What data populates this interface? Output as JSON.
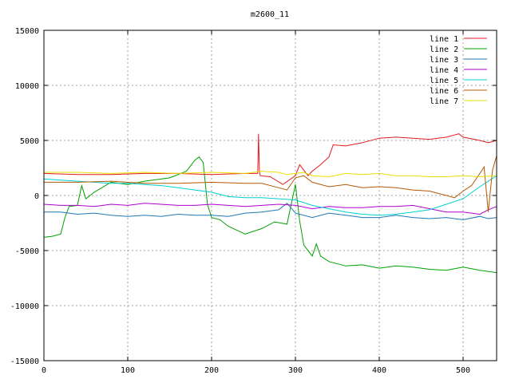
{
  "chart_data": {
    "type": "line",
    "title": "m2600_11",
    "xlabel": "",
    "ylabel": "",
    "xlim": [
      0,
      540
    ],
    "ylim": [
      -15000,
      15000
    ],
    "xticks": [
      0,
      100,
      200,
      300,
      400,
      500
    ],
    "yticks": [
      -15000,
      -10000,
      -5000,
      0,
      5000,
      10000,
      15000
    ],
    "grid": true,
    "legend_position": "top-right",
    "series": [
      {
        "name": "line 1",
        "color": "#e41a1c",
        "x": [
          0,
          40,
          80,
          120,
          160,
          200,
          240,
          255,
          256,
          257,
          258,
          270,
          285,
          300,
          305,
          315,
          320,
          330,
          340,
          345,
          360,
          380,
          400,
          420,
          440,
          460,
          480,
          495,
          500,
          520,
          530,
          540
        ],
        "y": [
          2000,
          1900,
          1900,
          2000,
          2000,
          1900,
          2000,
          2000,
          5600,
          2200,
          1800,
          1700,
          1000,
          1800,
          2800,
          1800,
          2200,
          2800,
          3500,
          4600,
          4500,
          4800,
          5200,
          5300,
          5200,
          5100,
          5300,
          5600,
          5300,
          5000,
          4800,
          5000
        ]
      },
      {
        "name": "line 2",
        "color": "#00a000",
        "x": [
          0,
          10,
          20,
          25,
          30,
          40,
          45,
          50,
          60,
          80,
          100,
          120,
          150,
          170,
          180,
          185,
          190,
          195,
          200,
          210,
          220,
          240,
          260,
          275,
          290,
          300,
          305,
          310,
          320,
          325,
          330,
          340,
          360,
          380,
          400,
          420,
          440,
          460,
          480,
          500,
          520,
          540
        ],
        "y": [
          -3800,
          -3700,
          -3500,
          -2000,
          -1000,
          -900,
          900,
          -300,
          300,
          1200,
          1000,
          1300,
          1600,
          2200,
          3200,
          3500,
          3000,
          -800,
          -2000,
          -2200,
          -2800,
          -3500,
          -3000,
          -2400,
          -2600,
          1000,
          -2300,
          -4500,
          -5500,
          -4400,
          -5500,
          -6000,
          -6400,
          -6300,
          -6600,
          -6400,
          -6500,
          -6700,
          -6800,
          -6500,
          -6800,
          -7000
        ]
      },
      {
        "name": "line 3",
        "color": "#1f77b4",
        "x": [
          0,
          20,
          40,
          60,
          80,
          100,
          120,
          140,
          160,
          180,
          200,
          220,
          240,
          260,
          280,
          290,
          300,
          320,
          340,
          360,
          380,
          400,
          420,
          440,
          460,
          480,
          500,
          520,
          530,
          540
        ],
        "y": [
          -1500,
          -1500,
          -1700,
          -1600,
          -1800,
          -1900,
          -1800,
          -1900,
          -1700,
          -1800,
          -1800,
          -1900,
          -1600,
          -1500,
          -1300,
          -700,
          -1600,
          -2000,
          -1600,
          -1800,
          -2000,
          -2000,
          -1800,
          -2000,
          -2100,
          -2000,
          -2200,
          -1900,
          -2100,
          -2000
        ]
      },
      {
        "name": "line 4",
        "color": "#b000d0",
        "x": [
          0,
          20,
          40,
          60,
          80,
          100,
          120,
          140,
          160,
          180,
          200,
          220,
          240,
          260,
          280,
          300,
          320,
          340,
          360,
          380,
          400,
          420,
          440,
          460,
          480,
          500,
          520,
          530,
          540
        ],
        "y": [
          -800,
          -900,
          -900,
          -1000,
          -800,
          -900,
          -700,
          -800,
          -900,
          -900,
          -800,
          -900,
          -1000,
          -900,
          -800,
          -900,
          -1200,
          -1000,
          -1100,
          -1100,
          -1000,
          -1000,
          -900,
          -1200,
          -1500,
          -1500,
          -1700,
          -1300,
          -1000
        ]
      },
      {
        "name": "line 5",
        "color": "#00d0d0",
        "x": [
          0,
          20,
          40,
          60,
          80,
          100,
          120,
          140,
          160,
          180,
          200,
          220,
          240,
          260,
          280,
          300,
          320,
          340,
          360,
          380,
          400,
          420,
          440,
          460,
          480,
          500,
          520,
          540
        ],
        "y": [
          1500,
          1400,
          1300,
          1200,
          1100,
          1100,
          1000,
          900,
          700,
          500,
          300,
          -100,
          -200,
          -200,
          -300,
          -400,
          -900,
          -1200,
          -1500,
          -1700,
          -1800,
          -1700,
          -1500,
          -1300,
          -800,
          -300,
          800,
          1800
        ]
      },
      {
        "name": "line 6",
        "color": "#b35806",
        "x": [
          0,
          40,
          80,
          120,
          160,
          200,
          240,
          260,
          280,
          290,
          300,
          310,
          320,
          340,
          360,
          380,
          400,
          420,
          440,
          460,
          480,
          490,
          500,
          510,
          520,
          525,
          530,
          535,
          540
        ],
        "y": [
          1200,
          1200,
          1300,
          1100,
          1100,
          1200,
          1100,
          1100,
          700,
          500,
          1600,
          1800,
          1200,
          800,
          1000,
          700,
          800,
          700,
          500,
          400,
          0,
          -200,
          400,
          900,
          2000,
          2600,
          -1500,
          2300,
          3600
        ]
      },
      {
        "name": "line 7",
        "color": "#e8e000",
        "x": [
          0,
          40,
          80,
          120,
          160,
          200,
          240,
          260,
          280,
          290,
          300,
          310,
          320,
          340,
          360,
          380,
          400,
          420,
          440,
          460,
          480,
          500,
          520,
          540
        ],
        "y": [
          2100,
          2100,
          2000,
          2100,
          2000,
          2100,
          2000,
          2200,
          2100,
          1900,
          2000,
          2100,
          1800,
          1700,
          2000,
          1900,
          2000,
          1800,
          1800,
          1700,
          1700,
          1800,
          1700,
          1800
        ]
      }
    ]
  }
}
